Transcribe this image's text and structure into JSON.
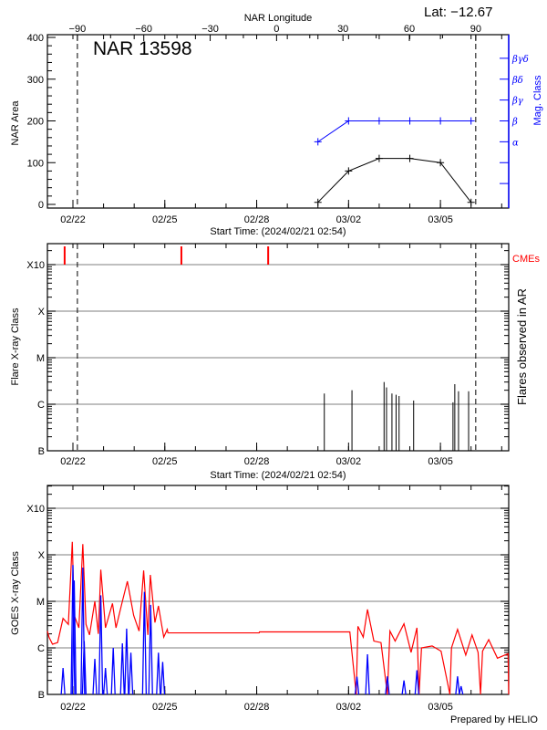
{
  "header": {
    "lat_label": "Lat: −12.67",
    "footer": "Prepared by HELIO"
  },
  "colors": {
    "area": "#000000",
    "mag_class": "#0000ff",
    "cme": "#ff0000",
    "flare": "#000000",
    "goes_long": "#ff0000",
    "goes_short": "#0000ff",
    "grid": "#999999"
  },
  "x_axis": {
    "xlim": [
      "02-21 04:00",
      "03-07 05:30"
    ],
    "year": 2024,
    "xlabel": "Start Time: (2024/02/21 02:54)",
    "ticks": [
      {
        "date": "02-22 00:00",
        "label": "02/22"
      },
      {
        "date": "02-25 00:00",
        "label": "02/25"
      },
      {
        "date": "02-28 00:00",
        "label": "02/28"
      },
      {
        "date": "03-02 00:00",
        "label": "03/02"
      },
      {
        "date": "03-05 00:00",
        "label": "03/05"
      }
    ],
    "minor_tick_interval": "1 day"
  },
  "chart_data": [
    {
      "type": "line",
      "title": "NAR 13598",
      "ylabel": "NAR Area",
      "y2label": "Mag. Class",
      "top_axis_label": "NAR Longitude",
      "top_ticks": [
        -90,
        -60,
        -30,
        0,
        30,
        60,
        90
      ],
      "limb_crossings": [
        "02-22 03:30",
        "03-06 03:40"
      ],
      "ylim": [
        0,
        400
      ],
      "yticks": [
        0,
        100,
        200,
        300,
        400
      ],
      "mag_axis": [
        "",
        "",
        "α",
        "β",
        "βγ",
        "βδ",
        "βγδ"
      ],
      "series": [
        {
          "key": "area",
          "x": [
            "03-01 00:00",
            "03-02 00:00",
            "03-03 00:00",
            "03-04 00:00",
            "03-05 00:00",
            "03-06 00:00"
          ],
          "values": [
            5,
            80,
            110,
            110,
            100,
            5
          ]
        },
        {
          "key": "mag_class",
          "x": [
            "03-01 00:00",
            "03-02 00:00",
            "03-03 00:00",
            "03-04 00:00",
            "03-05 00:00",
            "03-06 00:00"
          ],
          "values": [
            "α",
            "β",
            "β",
            "β",
            "β",
            "β"
          ]
        }
      ],
      "grid": false
    },
    {
      "type": "bar",
      "ylabel": "Flare X-ray Class",
      "y2label": "Flares observed in AR",
      "cme_label": "CMEs",
      "yscale": "log",
      "yticks": [
        {
          "flux": 1e-07,
          "label": "B"
        },
        {
          "flux": 1e-06,
          "label": "C"
        },
        {
          "flux": 1e-05,
          "label": "M"
        },
        {
          "flux": 0.0001,
          "label": "X"
        },
        {
          "flux": 0.001,
          "label": "X10"
        }
      ],
      "grid": true,
      "limb_crossings": [
        "02-22 03:30",
        "03-06 03:40"
      ],
      "cmes": [
        "02-21 17:30",
        "02-25 13:00",
        "02-28 09:00"
      ],
      "flares": {
        "x": [
          "03-01 05:00",
          "03-02 02:40",
          "03-03 03:50",
          "03-03 05:45",
          "03-03 10:00",
          "03-03 13:15",
          "03-03 15:35",
          "03-04 03:00",
          "03-05 09:50",
          "03-05 11:15",
          "03-05 14:10",
          "03-05 22:05"
        ],
        "flux": [
          1.7e-06,
          2e-06,
          3e-06,
          2.3e-06,
          1.7e-06,
          1.6e-06,
          1.5e-06,
          1.2e-06,
          1.1e-06,
          2.7e-06,
          1.9e-06,
          1.9e-06
        ]
      }
    },
    {
      "type": "line",
      "ylabel": "GOES X-ray Class",
      "yscale": "log",
      "yticks": [
        {
          "flux": 1e-07,
          "label": "B"
        },
        {
          "flux": 1e-06,
          "label": "C"
        },
        {
          "flux": 1e-05,
          "label": "M"
        },
        {
          "flux": 0.0001,
          "label": "X"
        },
        {
          "flux": 0.001,
          "label": "X10"
        }
      ],
      "grid": true,
      "series": [
        {
          "key": "goes_long",
          "x": [
            "02-21 04:00",
            "02-21 05:15",
            "02-21 08:00",
            "02-21 12:00",
            "02-21 16:15",
            "02-21 20:25",
            "02-21 23:30",
            "02-22 01:00",
            "02-22 04:40",
            "02-22 07:45",
            "02-22 10:15",
            "02-22 13:00",
            "02-22 17:10",
            "02-22 19:55",
            "02-22 21:50",
            "02-23 01:30",
            "02-23 07:00",
            "02-23 09:45",
            "02-23 14:45",
            "02-23 18:40",
            "02-23 23:35",
            "02-24 03:50",
            "02-24 07:25",
            "02-24 10:45",
            "02-24 12:40",
            "02-24 16:15",
            "02-24 19:00",
            "02-24 23:10",
            "02-25 01:55",
            "02-25 02:25",
            "02-28 01:55",
            "02-28 02:10",
            "03-02 01:00",
            "03-02 06:00",
            "03-02 07:20",
            "03-02 11:30",
            "03-02 14:50",
            "03-02 19:50",
            "03-03 01:25",
            "03-03 06:25",
            "03-03 08:25",
            "03-03 12:30",
            "03-03 19:25",
            "03-04 01:00",
            "03-04 05:35",
            "03-04 07:15",
            "03-04 09:10",
            "03-04 17:30",
            "03-05 00:30",
            "03-05 07:25",
            "03-05 08:40",
            "03-05 13:25",
            "03-05 19:50",
            "03-06 00:45",
            "03-06 05:30",
            "03-06 07:25",
            "03-06 09:00",
            "03-06 13:50",
            "03-06 20:40",
            "03-07 05:00",
            "03-07 05:30"
          ],
          "flux": [
            2.3e-06,
            1.7e-06,
            1.2e-06,
            1.3e-06,
            4.3e-06,
            3.2e-06,
            0.00019,
            5e-06,
            2.7e-06,
            0.00017,
            3.2e-06,
            1.9e-06,
            1e-05,
            2e-06,
            4.8e-05,
            2.7e-06,
            9e-06,
            2.7e-06,
            1e-05,
            2.7e-05,
            5e-06,
            2.3e-06,
            4.6e-05,
            1.9e-06,
            3.7e-05,
            3.5e-06,
            8e-06,
            1.7e-06,
            2.5e-06,
            2.1e-06,
            2.1e-06,
            2.2e-06,
            2.2e-06,
            1e-07,
            2.9e-06,
            1.7e-06,
            6.7e-06,
            1.4e-06,
            1.3e-06,
            1e-07,
            2.3e-06,
            1.4e-06,
            3.3e-06,
            8e-07,
            2.7e-06,
            1e-07,
            1e-06,
            1.1e-06,
            8.5e-07,
            1e-07,
            1e-06,
            2.5e-06,
            7e-07,
            1.9e-06,
            8e-07,
            1e-07,
            8.5e-07,
            1.5e-06,
            6e-07,
            7.5e-07,
            1e-07
          ]
        },
        {
          "key": "goes_short",
          "x": [
            "02-21 16:15",
            "02-22 00:00",
            "02-22 01:00",
            "02-22 07:45",
            "02-22 08:50",
            "02-22 17:10",
            "02-22 21:50",
            "02-23 01:30",
            "02-23 07:35",
            "02-23 14:45",
            "02-23 18:05",
            "02-23 21:25",
            "02-24 08:00",
            "02-24 12:55",
            "02-24 19:00",
            "02-24 22:20",
            "03-02 06:35",
            "03-02 14:50",
            "03-03 06:25",
            "03-03 19:25",
            "03-04 05:35",
            "03-05 13:25",
            "03-05 16:10"
          ],
          "flux": [
            3.7e-07,
            6e-05,
            2.8e-05,
            5.3e-05,
            1.4e-06,
            5.8e-07,
            1.35e-05,
            3.7e-07,
            1e-06,
            1.25e-06,
            2.6e-06,
            7.9e-07,
            1.6e-05,
            8.4e-06,
            7.9e-07,
            5e-07,
            2.4e-07,
            7.3e-07,
            2.45e-07,
            2e-07,
            3.3e-07,
            2.45e-07,
            1.5e-07
          ]
        }
      ]
    }
  ]
}
